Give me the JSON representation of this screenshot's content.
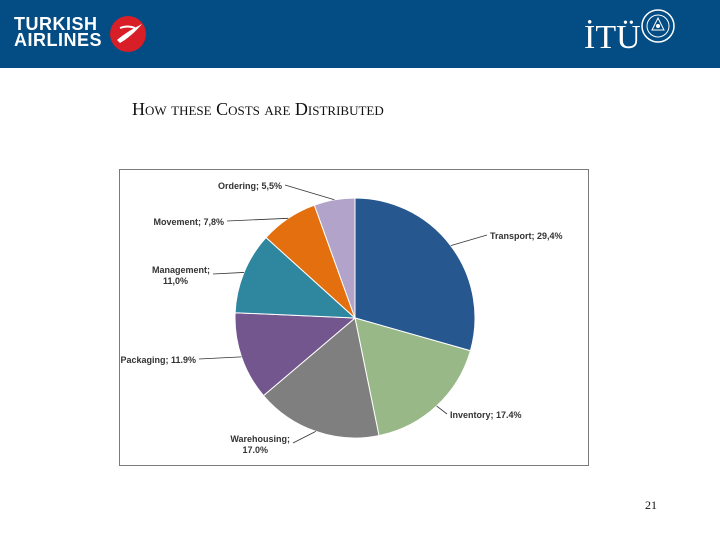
{
  "header": {
    "airline_logo_line1": "TURKISH",
    "airline_logo_line2": "AIRLINES",
    "university_logo": "İTÜ",
    "banner_color": "#034c84"
  },
  "slide": {
    "title": "How these Costs are Distributed",
    "page_number": "21"
  },
  "chart_data": {
    "type": "pie",
    "title": "",
    "slices": [
      {
        "name": "Transport",
        "label_lines": [
          "Transport; 29,4%"
        ],
        "value": 29.4,
        "color": "#26578f"
      },
      {
        "name": "Inventory",
        "label_lines": [
          "Inventory; 17.4%"
        ],
        "value": 17.4,
        "color": "#98b987"
      },
      {
        "name": "Warehousing",
        "label_lines": [
          "Warehousing;",
          "17.0%"
        ],
        "value": 17.0,
        "color": "#7f7f7f"
      },
      {
        "name": "Packaging",
        "label_lines": [
          "Packaging; 11.9%"
        ],
        "value": 11.9,
        "color": "#74568f"
      },
      {
        "name": "Management",
        "label_lines": [
          "Management;",
          "11,0%"
        ],
        "value": 11.0,
        "color": "#2e879f"
      },
      {
        "name": "Movement",
        "label_lines": [
          "Movement; 7,8%"
        ],
        "value": 7.8,
        "color": "#e46f0e"
      },
      {
        "name": "Ordering",
        "label_lines": [
          "Ordering; 5,5%"
        ],
        "value": 5.5,
        "color": "#b1a3c9"
      }
    ]
  }
}
